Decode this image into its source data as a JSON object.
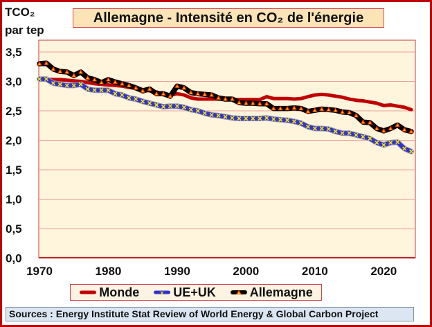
{
  "chart_data": {
    "type": "line",
    "title": "Allemagne - Intensité en CO₂ de l'énergie",
    "ylabel_line1": "TCO₂",
    "ylabel_line2": "par tep",
    "xlabel": "",
    "ylim": [
      0,
      3.5
    ],
    "yticks": [
      0,
      0.5,
      1.0,
      1.5,
      2.0,
      2.5,
      3.0,
      3.5
    ],
    "ytick_labels": [
      "0,0",
      "0,5",
      "1,0",
      "1,5",
      "2,0",
      "2,5",
      "3,0",
      "3,5"
    ],
    "xlim": [
      1969.9,
      2024.6
    ],
    "xticks": [
      1970,
      1980,
      1990,
      2000,
      2010,
      2020
    ],
    "xtick_labels": [
      "1970",
      "1980",
      "1990",
      "2000",
      "2010",
      "2020"
    ],
    "grid": true,
    "legend_position": "bottom",
    "x": [
      1970,
      1971,
      1972,
      1973,
      1974,
      1975,
      1976,
      1977,
      1978,
      1979,
      1980,
      1981,
      1982,
      1983,
      1984,
      1985,
      1986,
      1987,
      1988,
      1989,
      1990,
      1991,
      1992,
      1993,
      1994,
      1995,
      1996,
      1997,
      1998,
      1999,
      2000,
      2001,
      2002,
      2003,
      2004,
      2005,
      2006,
      2007,
      2008,
      2009,
      2010,
      2011,
      2012,
      2013,
      2014,
      2015,
      2016,
      2017,
      2018,
      2019,
      2020,
      2021,
      2022,
      2023,
      2024
    ],
    "series": [
      {
        "name": "Monde",
        "color": "#C00000",
        "marker": "none",
        "values": [
          3.05,
          3.04,
          3.03,
          3.03,
          3.02,
          3.01,
          3.0,
          2.98,
          2.96,
          2.95,
          2.94,
          2.93,
          2.92,
          2.9,
          2.88,
          2.86,
          2.84,
          2.82,
          2.78,
          2.77,
          2.79,
          2.77,
          2.72,
          2.7,
          2.7,
          2.7,
          2.7,
          2.7,
          2.69,
          2.69,
          2.69,
          2.69,
          2.69,
          2.74,
          2.71,
          2.71,
          2.71,
          2.7,
          2.71,
          2.74,
          2.77,
          2.78,
          2.77,
          2.75,
          2.73,
          2.7,
          2.68,
          2.67,
          2.65,
          2.63,
          2.59,
          2.6,
          2.58,
          2.56,
          2.52
        ]
      },
      {
        "name": "UE+UK",
        "color": "#3333CC",
        "marker": "x",
        "marker_color": "#F2E600",
        "values": [
          3.04,
          3.04,
          2.97,
          2.95,
          2.93,
          2.93,
          2.95,
          2.87,
          2.85,
          2.85,
          2.85,
          2.79,
          2.77,
          2.72,
          2.7,
          2.66,
          2.63,
          2.6,
          2.57,
          2.58,
          2.58,
          2.56,
          2.52,
          2.5,
          2.46,
          2.43,
          2.42,
          2.4,
          2.38,
          2.37,
          2.37,
          2.37,
          2.37,
          2.38,
          2.36,
          2.35,
          2.34,
          2.32,
          2.29,
          2.23,
          2.2,
          2.2,
          2.19,
          2.15,
          2.12,
          2.12,
          2.09,
          2.06,
          2.03,
          1.96,
          1.92,
          1.96,
          1.97,
          1.86,
          1.81
        ]
      },
      {
        "name": "Allemagne",
        "color": "#000000",
        "marker": "triangle",
        "marker_color": "#FF2A00",
        "marker_inner": "#FFD700",
        "values": [
          3.3,
          3.31,
          3.21,
          3.17,
          3.16,
          3.1,
          3.16,
          3.06,
          3.03,
          2.98,
          3.03,
          2.99,
          2.96,
          2.93,
          2.89,
          2.84,
          2.87,
          2.79,
          2.79,
          2.75,
          2.92,
          2.89,
          2.81,
          2.79,
          2.78,
          2.77,
          2.72,
          2.7,
          2.7,
          2.64,
          2.63,
          2.63,
          2.62,
          2.62,
          2.54,
          2.54,
          2.54,
          2.55,
          2.54,
          2.49,
          2.51,
          2.53,
          2.52,
          2.51,
          2.48,
          2.47,
          2.42,
          2.31,
          2.3,
          2.2,
          2.16,
          2.2,
          2.26,
          2.18,
          2.15
        ]
      }
    ]
  },
  "legend": {
    "items": [
      "Monde",
      "UE+UK",
      "Allemagne"
    ]
  },
  "sources": "Sources : Energy Institute Stat Review of World Energy & Global Carbon Project",
  "colors": {
    "frame": "#C00000",
    "plot_bg": "#FFF4DC",
    "grid": "#E8A09A",
    "title_bg": "#FDE4B6",
    "sources_bg": "#DCE6F2"
  }
}
